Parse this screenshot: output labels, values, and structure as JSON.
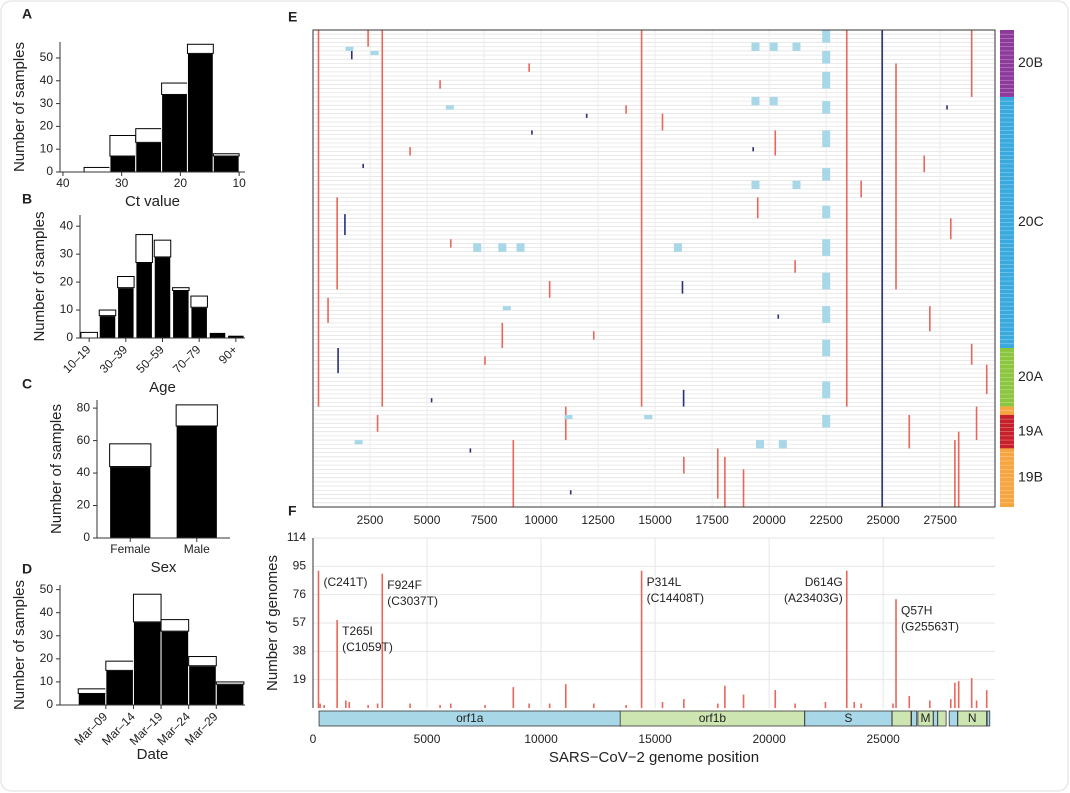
{
  "chart_data": [
    {
      "type": "histogram",
      "panel_label": "A",
      "xlabel": "Ct value",
      "ylabel": "Number of samples",
      "bins": [
        36.4,
        32,
        27.6,
        23.2,
        18.8,
        14.4,
        10
      ],
      "series": [
        {
          "color": "#000000",
          "values": [
            0,
            7,
            13,
            34,
            52,
            7
          ]
        },
        {
          "color": "#ffffff",
          "values": [
            2,
            9,
            6,
            5,
            4,
            1
          ]
        }
      ],
      "xlim": [
        40.5,
        9
      ],
      "xticks": [
        40,
        30,
        20,
        10
      ],
      "ylim": [
        0,
        57
      ],
      "yticks": [
        0,
        10,
        20,
        30,
        40,
        50
      ]
    },
    {
      "type": "bar",
      "panel_label": "B",
      "xlabel": "Age",
      "ylabel": "Number of samples",
      "categories": [
        "10–19",
        null,
        "30–39",
        null,
        "50–59",
        null,
        "70–79",
        null,
        "90+"
      ],
      "series": [
        {
          "color": "#000000",
          "values": [
            0,
            8,
            18,
            27,
            29,
            17,
            11,
            2,
            1
          ]
        },
        {
          "color": "#ffffff",
          "values": [
            2,
            2,
            4,
            10,
            6,
            1,
            4,
            0,
            0
          ]
        }
      ],
      "ylim": [
        0,
        44
      ],
      "yticks": [
        0,
        10,
        20,
        30,
        40
      ]
    },
    {
      "type": "bar",
      "panel_label": "C",
      "xlabel": "Sex",
      "ylabel": "Number of samples",
      "categories": [
        "Female",
        "Male"
      ],
      "series": [
        {
          "color": "#000000",
          "values": [
            44,
            69
          ]
        },
        {
          "color": "#ffffff",
          "values": [
            14,
            13
          ]
        }
      ],
      "ylim": [
        0,
        85
      ],
      "yticks": [
        0,
        20,
        40,
        60,
        80
      ]
    },
    {
      "type": "histogram",
      "panel_label": "D",
      "xlabel": "Date",
      "ylabel": "Number of samples",
      "bins": [
        4,
        9,
        14,
        19,
        24,
        29,
        34
      ],
      "series": [
        {
          "color": "#000000",
          "values": [
            5,
            15,
            36,
            32,
            17,
            9
          ]
        },
        {
          "color": "#ffffff",
          "values": [
            2,
            4,
            12,
            5,
            4,
            1
          ]
        }
      ],
      "xlim": [
        0.7,
        34.2
      ],
      "xticks": [
        {
          "value": 9,
          "label": "Mar–09"
        },
        {
          "value": 14,
          "label": "Mar–14"
        },
        {
          "value": 19,
          "label": "Mar–19"
        },
        {
          "value": 24,
          "label": "Mar–24"
        },
        {
          "value": 29,
          "label": "Mar–29"
        }
      ],
      "ylim": [
        0,
        52
      ],
      "yticks": [
        0,
        10,
        20,
        30,
        40,
        50
      ]
    },
    {
      "type": "heatmap",
      "panel_label": "E",
      "xlim": [
        0,
        29903
      ],
      "xticks": [
        2500,
        5000,
        7500,
        10000,
        12500,
        15000,
        17500,
        20000,
        22500,
        25000,
        27500
      ],
      "clades": [
        {
          "label": "20B",
          "rows": 16,
          "color": "#8e3a9d"
        },
        {
          "label": "20C",
          "rows": 60,
          "color": "#3aa9de"
        },
        {
          "label": "20A",
          "rows": 14,
          "color": "#8cc63f"
        },
        {
          "label": null,
          "rows": 2,
          "color": "#f7a540"
        },
        {
          "label": "19A",
          "rows": 8,
          "color": "#c8202a"
        },
        {
          "label": "19B",
          "rows": 14,
          "color": "#f7a540"
        }
      ],
      "series": [
        {
          "color": "#e8675a",
          "segments": [
            [
              241,
              0,
              90
            ],
            [
              3037,
              0,
              90
            ],
            [
              14408,
              0,
              90
            ],
            [
              23403,
              0,
              90
            ],
            [
              25563,
              8,
              62
            ],
            [
              1059,
              40,
              62
            ],
            [
              8782,
              98,
              114
            ],
            [
              28144,
              98,
              114
            ],
            [
              18060,
              102,
              114
            ],
            [
              28881,
              0,
              16
            ],
            [
              28881,
              75,
              80
            ],
            [
              28311,
              96,
              114
            ],
            [
              17747,
              100,
              112
            ],
            [
              11083,
              90,
              98
            ],
            [
              20268,
              24,
              30
            ],
            [
              26144,
              92,
              100
            ],
            [
              29540,
              80,
              87
            ],
            [
              29095,
              90,
              98
            ],
            [
              18877,
              105,
              114
            ],
            [
              10376,
              60,
              64
            ],
            [
              5572,
              12,
              14
            ],
            [
              12310,
              72,
              74
            ],
            [
              15324,
              20,
              24
            ],
            [
              6040,
              50,
              52
            ],
            [
              7540,
              78,
              80
            ],
            [
              24034,
              36,
              40
            ],
            [
              27046,
              66,
              72
            ],
            [
              2416,
              0,
              4
            ],
            [
              4256,
              28,
              30
            ],
            [
              9477,
              8,
              10
            ],
            [
              13730,
              18,
              20
            ],
            [
              16260,
              102,
              106
            ],
            [
              19500,
              40,
              45
            ],
            [
              21138,
              55,
              58
            ],
            [
              26800,
              30,
              34
            ],
            [
              27964,
              45,
              50
            ],
            [
              22468,
              84,
              88
            ],
            [
              660,
              64,
              70
            ],
            [
              2832,
              92,
              96
            ],
            [
              8300,
              70,
              76
            ]
          ]
        },
        {
          "color": "#2a2f7a",
          "segments": [
            [
              24956,
              0,
              114
            ],
            [
              1700,
              5,
              7
            ],
            [
              1400,
              44,
              49
            ],
            [
              16200,
              60,
              63
            ],
            [
              16250,
              86,
              90
            ],
            [
              5200,
              88,
              89
            ],
            [
              12000,
              20,
              21
            ],
            [
              19300,
              28,
              29
            ],
            [
              9600,
              24,
              25
            ],
            [
              20400,
              68,
              69
            ],
            [
              27800,
              18,
              19
            ],
            [
              6900,
              100,
              101
            ],
            [
              2200,
              32,
              33
            ],
            [
              11300,
              110,
              111
            ],
            [
              1100,
              76,
              82
            ]
          ]
        },
        {
          "color": "#a8d8e8",
          "segments": [
            [
              22500,
              0,
              3
            ],
            [
              22500,
              5,
              8
            ],
            [
              22500,
              10,
              14
            ],
            [
              22500,
              17,
              20
            ],
            [
              22500,
              24,
              28
            ],
            [
              22500,
              33,
              36
            ],
            [
              22500,
              42,
              45
            ],
            [
              22500,
              50,
              54
            ],
            [
              22500,
              58,
              62
            ],
            [
              22500,
              66,
              70
            ],
            [
              22500,
              74,
              78
            ],
            [
              22500,
              84,
              88
            ],
            [
              22500,
              92,
              95
            ],
            [
              19400,
              3,
              5
            ],
            [
              20200,
              3,
              5
            ],
            [
              21200,
              3,
              5
            ],
            [
              19400,
              16,
              18
            ],
            [
              20200,
              16,
              18
            ],
            [
              19400,
              36,
              38
            ],
            [
              21200,
              36,
              38
            ],
            [
              7200,
              51,
              53
            ],
            [
              8300,
              51,
              53
            ],
            [
              9100,
              51,
              53
            ],
            [
              16000,
              51,
              53
            ],
            [
              2700,
              5,
              6
            ],
            [
              1600,
              4,
              5
            ],
            [
              6000,
              18,
              19
            ],
            [
              8500,
              66,
              67
            ],
            [
              14700,
              92,
              93
            ],
            [
              11200,
              92,
              93
            ],
            [
              19600,
              98,
              100
            ],
            [
              20600,
              98,
              100
            ],
            [
              2000,
              98,
              99
            ]
          ]
        }
      ]
    },
    {
      "type": "lollipop",
      "panel_label": "F",
      "xlabel": "SARS−CoV−2 genome position",
      "ylabel": "Number of genomes",
      "color": "#e8675a",
      "x": [
        241,
        313,
        490,
        1059,
        1440,
        1590,
        2416,
        2832,
        3037,
        4256,
        5572,
        6040,
        7540,
        8782,
        9477,
        10376,
        11083,
        12310,
        13730,
        14408,
        15324,
        16260,
        17747,
        18060,
        18877,
        20268,
        21138,
        22468,
        23403,
        23731,
        24034,
        25429,
        25563,
        26144,
        27046,
        27964,
        28144,
        28311,
        28881,
        29095,
        29540
      ],
      "values": [
        92,
        3,
        2,
        59,
        5,
        4,
        2,
        3,
        90,
        3,
        2,
        3,
        2,
        14,
        3,
        3,
        16,
        3,
        2,
        92,
        4,
        6,
        3,
        15,
        9,
        12,
        3,
        4,
        92,
        4,
        3,
        3,
        73,
        8,
        5,
        6,
        17,
        18,
        20,
        5,
        12
      ],
      "annotations": [
        {
          "x": 241,
          "text": [
            "(C241T)"
          ]
        },
        {
          "x": 1059,
          "text": [
            "T265I",
            "(C1059T)"
          ]
        },
        {
          "x": 3037,
          "text": [
            "F924F",
            "(C3037T)"
          ]
        },
        {
          "x": 14408,
          "text": [
            "P314L",
            "(C14408T)"
          ]
        },
        {
          "x": 23403,
          "text": [
            "D614G",
            "(A23403G)"
          ]
        },
        {
          "x": 25563,
          "text": [
            "Q57H",
            "(G25563T)"
          ]
        }
      ],
      "genes": [
        {
          "label": "orf1a",
          "start": 266,
          "end": 13483,
          "color": "#a8d8e8"
        },
        {
          "label": "orf1b",
          "start": 13468,
          "end": 21555,
          "color": "#cde5b0"
        },
        {
          "label": "S",
          "start": 21563,
          "end": 25384,
          "color": "#a8d8e8"
        },
        {
          "label": null,
          "start": 25393,
          "end": 26220,
          "color": "#cde5b0"
        },
        {
          "label": null,
          "start": 26245,
          "end": 26472,
          "color": "#a8d8e8"
        },
        {
          "label": "M",
          "start": 26523,
          "end": 27191,
          "color": "#cde5b0"
        },
        {
          "label": null,
          "start": 27202,
          "end": 27387,
          "color": "#a8d8e8"
        },
        {
          "label": null,
          "start": 27394,
          "end": 27759,
          "color": "#cde5b0"
        },
        {
          "label": null,
          "start": 27894,
          "end": 28259,
          "color": "#a8d8e8"
        },
        {
          "label": "N",
          "start": 28274,
          "end": 29533,
          "color": "#cde5b0"
        },
        {
          "label": null,
          "start": 29558,
          "end": 29674,
          "color": "#a8d8e8"
        }
      ],
      "xlim": [
        0,
        29903
      ],
      "xticks": [
        0,
        5000,
        10000,
        15000,
        20000,
        25000
      ],
      "ylim": [
        0,
        114
      ],
      "yticks": [
        19,
        38,
        57,
        76,
        95,
        114
      ],
      "grid": true
    }
  ]
}
